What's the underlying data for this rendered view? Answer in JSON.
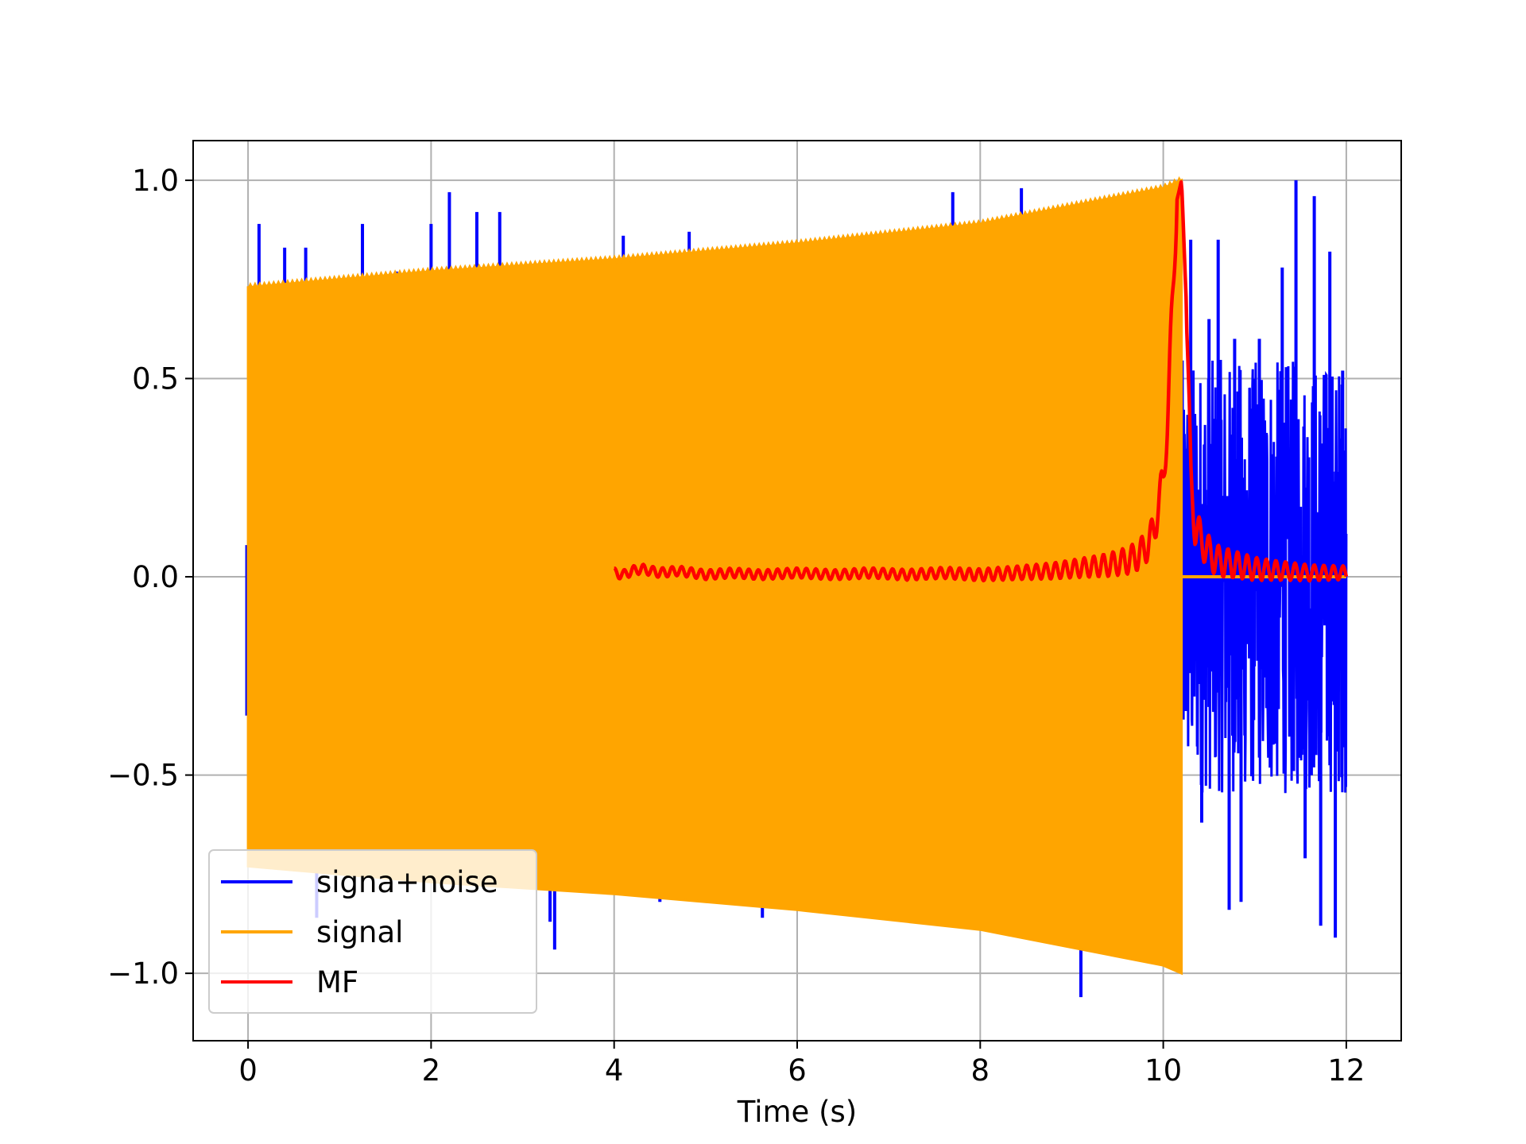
{
  "chart_data": {
    "type": "line",
    "title": "",
    "xlabel": "Time (s)",
    "ylabel": "",
    "xlim": [
      -0.6,
      12.6
    ],
    "ylim": [
      -1.17,
      1.1
    ],
    "xticks": [
      0,
      2,
      4,
      6,
      8,
      10,
      12
    ],
    "xtick_labels": [
      "0",
      "2",
      "4",
      "6",
      "8",
      "10",
      "12"
    ],
    "yticks": [
      -1.0,
      -0.5,
      0.0,
      0.5,
      1.0
    ],
    "ytick_labels": [
      "−1.0",
      "−0.5",
      "0.0",
      "0.5",
      "1.0"
    ],
    "grid": true,
    "legend_position": "lower-left",
    "series": [
      {
        "name": "signa+noise",
        "color": "#0000ff",
        "extent": {
          "x_start": 0,
          "x_end": 12
        },
        "envelope_x": [
          0,
          2,
          4,
          6,
          8,
          10,
          10.2
        ],
        "envelope_upper": [
          0.73,
          0.77,
          0.8,
          0.84,
          0.89,
          0.98,
          1.0
        ],
        "envelope_lower": [
          -0.73,
          -0.77,
          -0.8,
          -0.84,
          -0.89,
          -0.98,
          -1.0
        ],
        "spikes": [
          {
            "x": 0.12,
            "y": 0.89
          },
          {
            "x": 0.4,
            "y": 0.83
          },
          {
            "x": 0.63,
            "y": 0.83
          },
          {
            "x": 0.75,
            "y": -0.86
          },
          {
            "x": 1.25,
            "y": 0.89
          },
          {
            "x": 1.62,
            "y": 0.77
          },
          {
            "x": 2.0,
            "y": 0.89
          },
          {
            "x": 2.2,
            "y": 0.97
          },
          {
            "x": 2.5,
            "y": 0.92
          },
          {
            "x": 2.75,
            "y": 0.92
          },
          {
            "x": 3.3,
            "y": -0.87
          },
          {
            "x": 3.35,
            "y": -0.94
          },
          {
            "x": 4.1,
            "y": 0.86
          },
          {
            "x": 4.82,
            "y": 0.87
          },
          {
            "x": 4.5,
            "y": -0.82
          },
          {
            "x": 5.62,
            "y": -0.86
          },
          {
            "x": 7.7,
            "y": 0.97
          },
          {
            "x": 8.45,
            "y": 0.98
          },
          {
            "x": 9.1,
            "y": -1.06
          }
        ],
        "noise_region": {
          "x_start": 10.2,
          "x_end": 12.0,
          "min": -0.91,
          "max": 1.0
        },
        "noise_peaks": [
          {
            "x": 10.3,
            "y": 0.85
          },
          {
            "x": 10.42,
            "y": -0.62
          },
          {
            "x": 10.5,
            "y": 0.65
          },
          {
            "x": 10.6,
            "y": 0.85
          },
          {
            "x": 10.72,
            "y": -0.84
          },
          {
            "x": 10.78,
            "y": 0.6
          },
          {
            "x": 10.85,
            "y": -0.82
          },
          {
            "x": 11.05,
            "y": 0.6
          },
          {
            "x": 11.3,
            "y": 0.78
          },
          {
            "x": 11.45,
            "y": 1.0
          },
          {
            "x": 11.55,
            "y": -0.71
          },
          {
            "x": 11.65,
            "y": 0.96
          },
          {
            "x": 11.72,
            "y": -0.88
          },
          {
            "x": 11.82,
            "y": 0.82
          },
          {
            "x": 11.88,
            "y": -0.91
          },
          {
            "x": 11.96,
            "y": 0.52
          }
        ]
      },
      {
        "name": "signal",
        "color": "#ffa500",
        "extent": {
          "x_start": 0,
          "x_end": 10.2
        },
        "envelope_x": [
          0,
          2,
          4,
          6,
          8,
          10,
          10.2
        ],
        "envelope_upper": [
          0.73,
          0.77,
          0.8,
          0.84,
          0.89,
          0.98,
          1.0
        ],
        "envelope_lower": [
          -0.73,
          -0.77,
          -0.8,
          -0.84,
          -0.89,
          -0.98,
          -1.0
        ],
        "after_end_value": 0.0
      },
      {
        "name": "MF",
        "color": "#ff0000",
        "x": [
          4.0,
          4.1,
          4.2,
          4.3,
          4.5,
          4.7,
          5.0,
          5.3,
          5.6,
          6.0,
          6.4,
          6.8,
          7.2,
          7.6,
          8.0,
          8.4,
          8.8,
          9.0,
          9.2,
          9.4,
          9.6,
          9.7,
          9.8,
          9.85,
          9.9,
          9.95,
          10.0,
          10.05,
          10.1,
          10.15,
          10.2,
          10.25,
          10.3,
          10.35,
          10.4,
          10.5,
          10.6,
          10.8,
          11.0,
          11.3,
          11.6,
          12.0
        ],
        "y": [
          0.01,
          0.005,
          0.015,
          0.02,
          0.01,
          0.015,
          0.005,
          0.01,
          0.005,
          0.01,
          0.005,
          0.01,
          0.005,
          0.01,
          0.005,
          0.01,
          0.015,
          0.02,
          0.025,
          0.03,
          0.04,
          0.05,
          0.07,
          0.09,
          0.12,
          0.18,
          0.25,
          0.4,
          0.7,
          0.95,
          1.0,
          0.7,
          0.25,
          0.12,
          0.1,
          0.06,
          0.04,
          0.03,
          0.02,
          0.015,
          0.01,
          0.01
        ]
      }
    ]
  }
}
